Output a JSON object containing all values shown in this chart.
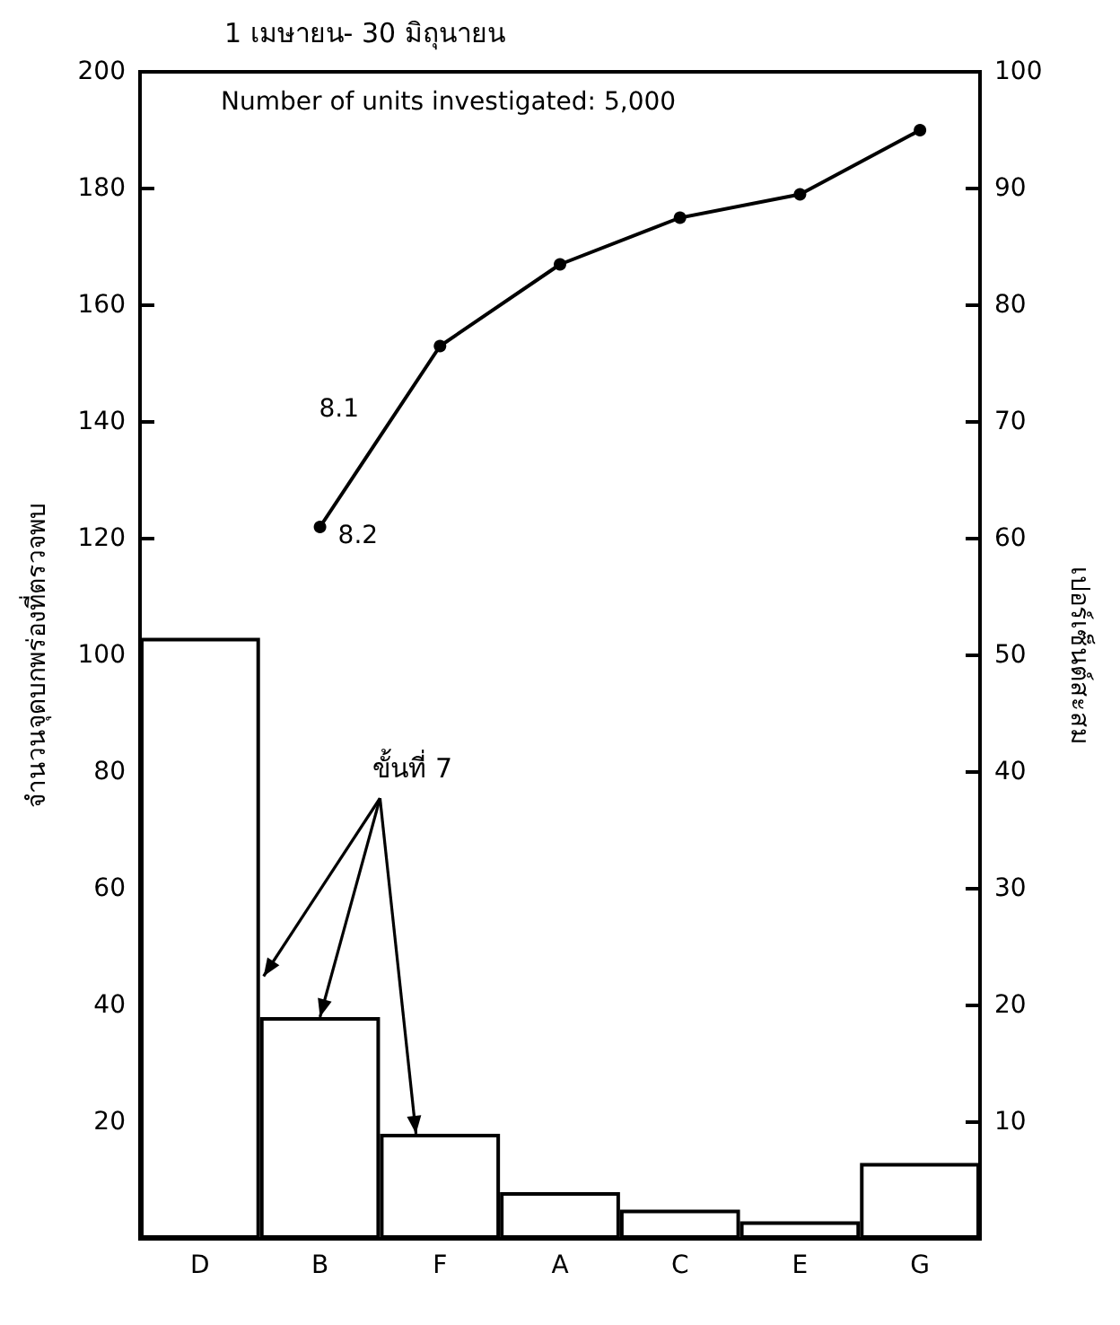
{
  "chart_data": {
    "type": "bar",
    "title": "1 เมษายน- 30 มิถุนายน",
    "ylabel": "จำนวนจุดบกพร่องที่ตรวจพบ",
    "y2label": "เปอร์เซ็นต์สะสม",
    "categories": [
      "D",
      "B",
      "F",
      "A",
      "C",
      "E",
      "G"
    ],
    "series": [
      {
        "color": "#ffffff",
        "values": [
          103,
          38,
          18,
          8,
          5,
          3,
          13
        ]
      },
      {
        "type": "line",
        "color": "#000000",
        "x": [
          "B",
          "F",
          "A",
          "C",
          "E",
          "G"
        ],
        "values": [
          122,
          153,
          167,
          175,
          179,
          190
        ]
      }
    ],
    "annotations": [
      "Number of units investigated: 5,000",
      "8.1",
      {
        "text": "8.2",
        "x": "B",
        "y": 122
      },
      {
        "text": "ขั้นที่ 7",
        "x": "B",
        "y": 38
      }
    ],
    "ylim": [
      0,
      200
    ],
    "yticks": [
      20,
      40,
      60,
      80,
      100,
      120,
      140,
      160,
      180,
      200
    ],
    "y2lim": [
      0,
      100
    ],
    "y2ticks": [
      10,
      20,
      30,
      40,
      50,
      60,
      70,
      80,
      90,
      100
    ],
    "grid": false,
    "marker": "circle",
    "line_style": "solid"
  }
}
